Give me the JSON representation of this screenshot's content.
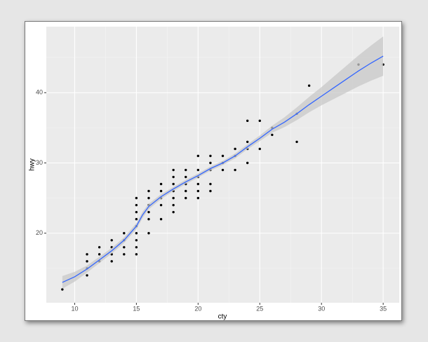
{
  "chart_data": {
    "type": "scatter",
    "x_label": "cty",
    "y_label": "hwy",
    "xlim": [
      7.7,
      36.3
    ],
    "ylim": [
      10.1,
      49.4
    ],
    "xticks": [
      10,
      15,
      20,
      25,
      30,
      35
    ],
    "yticks": [
      20,
      30,
      40
    ],
    "grid": true,
    "point_color": "#000000",
    "x": [
      9,
      11,
      11,
      11,
      11,
      12,
      12,
      12,
      13,
      13,
      13,
      13,
      14,
      14,
      14,
      14,
      15,
      15,
      15,
      15,
      15,
      15,
      15,
      15,
      15,
      16,
      16,
      16,
      16,
      16,
      16,
      17,
      17,
      17,
      17,
      17,
      18,
      18,
      18,
      18,
      18,
      18,
      18,
      19,
      19,
      19,
      19,
      19,
      20,
      20,
      20,
      20,
      20,
      20,
      21,
      21,
      21,
      21,
      21,
      22,
      22,
      22,
      23,
      23,
      23,
      24,
      24,
      24,
      24,
      25,
      25,
      26,
      26,
      28,
      28,
      29,
      33,
      35
    ],
    "y": [
      12,
      14,
      15,
      16,
      17,
      16,
      17,
      18,
      16,
      17,
      18,
      19,
      17,
      18,
      19,
      20,
      17,
      18,
      19,
      20,
      21,
      22,
      23,
      24,
      25,
      20,
      22,
      23,
      24,
      25,
      26,
      22,
      24,
      25,
      26,
      27,
      23,
      24,
      25,
      26,
      27,
      28,
      29,
      25,
      26,
      27,
      28,
      29,
      25,
      26,
      27,
      28,
      29,
      31,
      26,
      27,
      29,
      30,
      31,
      29,
      30,
      31,
      29,
      31,
      32,
      30,
      32,
      33,
      36,
      32,
      36,
      34,
      35,
      33,
      37,
      41,
      44,
      44
    ],
    "smooth": {
      "color": "#3366ff",
      "band_color": "#c8c8c8",
      "x": [
        9,
        10,
        11,
        12,
        13,
        14,
        15,
        15.5,
        16,
        17,
        18,
        19,
        20,
        21,
        22,
        23,
        24,
        25,
        26,
        27,
        28,
        29,
        30,
        31,
        32,
        33,
        34,
        35
      ],
      "y": [
        13.0,
        13.8,
        14.9,
        16.2,
        17.5,
        19.0,
        21.0,
        22.6,
        23.8,
        25.2,
        26.3,
        27.3,
        28.2,
        29.2,
        30.0,
        31.0,
        32.3,
        33.5,
        34.8,
        35.8,
        37.0,
        38.3,
        39.5,
        40.7,
        41.9,
        43.1,
        44.2,
        45.2
      ],
      "lower": [
        12.1,
        13.1,
        14.4,
        15.75,
        17.1,
        18.6,
        20.55,
        22.15,
        23.4,
        24.85,
        26.0,
        27.0,
        27.9,
        28.9,
        29.7,
        30.65,
        31.95,
        33.1,
        34.3,
        35.1,
        36.1,
        37.2,
        38.2,
        39.1,
        40.0,
        40.9,
        41.7,
        42.4
      ],
      "upper": [
        13.9,
        14.5,
        15.4,
        16.65,
        17.9,
        19.4,
        21.45,
        23.05,
        24.2,
        25.55,
        26.6,
        27.6,
        28.5,
        29.5,
        30.3,
        31.35,
        32.65,
        33.9,
        35.3,
        36.5,
        37.9,
        39.4,
        40.8,
        42.3,
        43.8,
        45.3,
        46.7,
        48.0
      ]
    }
  }
}
